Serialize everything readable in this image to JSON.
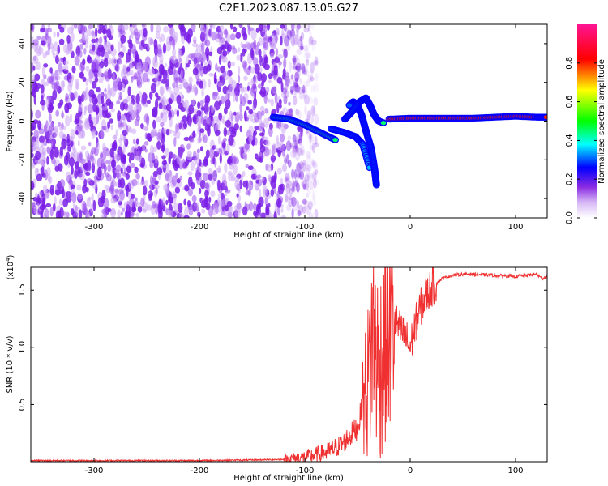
{
  "figure": {
    "title": "C2E1.2023.087.13.05.G27"
  },
  "chart_data": [
    {
      "type": "heatmap",
      "xlabel": "Height of straight line (km)",
      "ylabel": "Frequency (Hz)",
      "xlim": [
        -360,
        130
      ],
      "ylim": [
        -50,
        50
      ],
      "xticks": [
        -300,
        -200,
        -100,
        0,
        100
      ],
      "yticks": [
        -40,
        -20,
        0,
        20,
        40
      ],
      "colorbar": {
        "label": "Normalized spectral amplitude",
        "range": [
          0,
          1
        ],
        "ticks": [
          "0.0",
          "0.2",
          "0.4",
          "0.6",
          "0.8"
        ],
        "colormap": [
          "#ffffff",
          "#8a2be2",
          "#0000ff",
          "#00ffff",
          "#00ff00",
          "#ffff00",
          "#ff0000",
          "#ff1493"
        ]
      },
      "noise_region": {
        "x_range": [
          -360,
          -100
        ],
        "f_range": [
          -50,
          50
        ],
        "amplitude": 0.15
      },
      "ridges": [
        {
          "x": [
            -130,
            -115,
            -100,
            -85,
            -70
          ],
          "f": [
            2,
            1,
            -2,
            -6,
            -10
          ],
          "amplitude": 0.45
        },
        {
          "x": [
            -75,
            -62,
            -52,
            -45,
            -38
          ],
          "f": [
            -4,
            -6,
            -8,
            -12,
            -25
          ],
          "amplitude": 0.35
        },
        {
          "x": [
            -32,
            -34,
            -37,
            -42,
            -46,
            -50,
            -54,
            -58
          ],
          "f": [
            -33,
            -24,
            -14,
            -5,
            3,
            8,
            10,
            8
          ],
          "amplitude": 0.3
        },
        {
          "x": [
            -62,
            -55,
            -48,
            -42,
            -38,
            -34,
            -30,
            -25
          ],
          "f": [
            1,
            5,
            10,
            12,
            8,
            3,
            0,
            -1
          ],
          "amplitude": 0.45
        },
        {
          "x": [
            -20,
            0,
            20,
            40,
            60,
            80,
            100,
            120,
            130
          ],
          "f": [
            1,
            1.5,
            1.5,
            1.5,
            1.5,
            2,
            2.5,
            2,
            2
          ],
          "amplitude": 0.8
        }
      ]
    },
    {
      "type": "line",
      "xlabel": "Height of straight line (km)",
      "ylabel": "SNR (10 * v/v)",
      "exponent_label": "(x10",
      "exponent_sup": "4",
      "exponent_close": ")",
      "xlim": [
        -360,
        130
      ],
      "ylim": [
        0,
        1.7
      ],
      "xticks": [
        -300,
        -200,
        -100,
        0,
        100
      ],
      "yticks": [
        0.5,
        1.0,
        1.5
      ],
      "ytick_labels": [
        "0.5",
        "1.0",
        "1.5"
      ],
      "color": "#f03030",
      "series": [
        {
          "x": [
            -360,
            -300,
            -200,
            -150,
            -120,
            -100,
            -80,
            -65,
            -50,
            -40,
            -35,
            -30,
            -25,
            -20,
            -15,
            -10,
            -5,
            0,
            5,
            10,
            15,
            20,
            25,
            30,
            40,
            50,
            60,
            80,
            100,
            120,
            125,
            130
          ],
          "y": [
            0.01,
            0.01,
            0.01,
            0.015,
            0.02,
            0.04,
            0.08,
            0.15,
            0.3,
            0.7,
            1.2,
            0.8,
            1.0,
            1.1,
            1.25,
            1.15,
            1.1,
            1.0,
            1.2,
            1.35,
            1.45,
            1.52,
            1.56,
            1.6,
            1.63,
            1.64,
            1.64,
            1.63,
            1.62,
            1.64,
            1.6,
            1.62
          ]
        }
      ]
    }
  ]
}
